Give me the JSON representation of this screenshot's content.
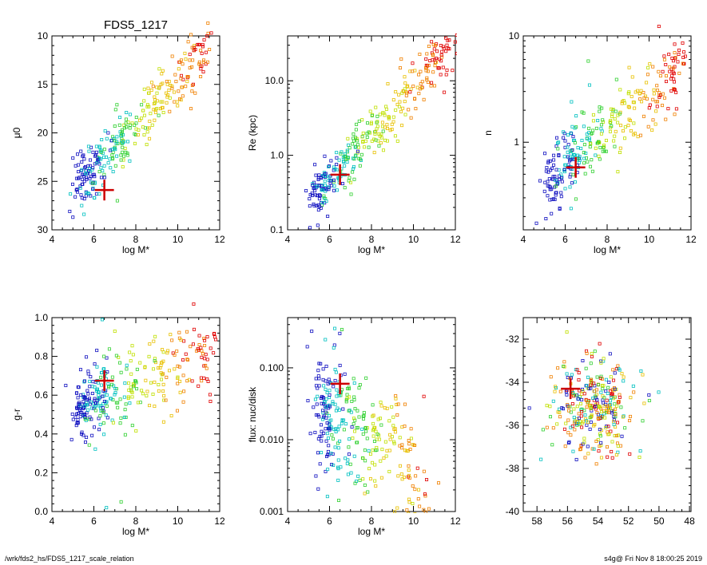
{
  "footer": {
    "path": "/wrk/fds2_hs/FDS5_1217_scale_relation",
    "stamp": "s4g@  Fri Nov  8 18:00:25 2019"
  },
  "colors": {
    "marker": "#cc0000",
    "palette": [
      "#1010c0",
      "#00c0c0",
      "#30d030",
      "#c0e000",
      "#e8c000",
      "#f08000",
      "#e00000"
    ]
  },
  "chart_data": [
    {
      "type": "scatter",
      "title": "FDS5_1217",
      "xlabel": "log M*",
      "ylabel": "μ0",
      "xlim": [
        4,
        12
      ],
      "ylim": [
        30,
        10
      ],
      "yscale": "linear",
      "xticks": [
        4,
        6,
        8,
        10,
        12
      ],
      "yticks": [
        10,
        15,
        20,
        25,
        30
      ],
      "ytick_labels": [
        "10",
        "15",
        "20",
        "25",
        "30"
      ],
      "marker": {
        "x": 6.5,
        "y": 25.9
      },
      "trend": {
        "x0": 5.3,
        "y0": 25.5,
        "x1": 11.5,
        "y1": 11.0,
        "scatter": 1.5
      },
      "outliers": [
        [
          9.2,
          16.8
        ],
        [
          11.6,
          9.7
        ],
        [
          7.1,
          17.1
        ]
      ],
      "points": []
    },
    {
      "type": "scatter",
      "title": "",
      "xlabel": "log M*",
      "ylabel": "Re (kpc)",
      "xlim": [
        4,
        12
      ],
      "ylim": [
        0.1,
        40
      ],
      "yscale": "log",
      "xticks": [
        4,
        6,
        8,
        10,
        12
      ],
      "yticks": [
        0.1,
        1.0,
        10.0
      ],
      "ytick_labels": [
        "0.1",
        "1.0",
        "10.0"
      ],
      "marker": {
        "x": 6.5,
        "y": 0.55
      },
      "trend": {
        "x0": 5.3,
        "y0": -0.55,
        "x1": 11.7,
        "y1": 1.45,
        "scatter": 0.18
      },
      "outliers": [
        [
          11.6,
          30.0
        ],
        [
          9.3,
          6.5
        ]
      ],
      "points": []
    },
    {
      "type": "scatter",
      "title": "",
      "xlabel": "log M*",
      "ylabel": "n",
      "xlim": [
        4,
        12
      ],
      "ylim": [
        0.15,
        10
      ],
      "yscale": "log",
      "xticks": [
        4,
        6,
        8,
        10,
        12
      ],
      "yticks": [
        1,
        10
      ],
      "ytick_labels": [
        "1",
        "10"
      ],
      "marker": {
        "x": 6.5,
        "y": 0.58
      },
      "trend": {
        "x0": 5.3,
        "y0": -0.35,
        "x1": 11.7,
        "y1": 0.75,
        "scatter": 0.17
      },
      "outliers": [
        [
          7.1,
          5.8
        ],
        [
          6.3,
          2.4
        ]
      ],
      "points": []
    },
    {
      "type": "scatter",
      "title": "",
      "xlabel": "log M*",
      "ylabel": "g-r",
      "xlim": [
        4,
        12
      ],
      "ylim": [
        0.0,
        1.0
      ],
      "yscale": "linear",
      "xticks": [
        4,
        6,
        8,
        10,
        12
      ],
      "yticks": [
        0.0,
        0.2,
        0.4,
        0.6,
        0.8,
        1.0
      ],
      "ytick_labels": [
        "0.0",
        "0.2",
        "0.4",
        "0.6",
        "0.8",
        "1.0"
      ],
      "marker": {
        "x": 6.5,
        "y": 0.675
      },
      "trend": {
        "x0": 5.3,
        "y0": 0.52,
        "x1": 11.7,
        "y1": 0.82,
        "scatter": 0.1
      },
      "outliers": [
        [
          6.4,
          0.99
        ],
        [
          7.3,
          0.05
        ],
        [
          6.6,
          0.02
        ],
        [
          7.0,
          0.93
        ]
      ],
      "points": []
    },
    {
      "type": "scatter",
      "title": "",
      "xlabel": "log M*",
      "ylabel": "flux: nuc/disk",
      "xlim": [
        4,
        12
      ],
      "ylim": [
        0.001,
        0.5
      ],
      "yscale": "log",
      "xticks": [
        4,
        6,
        8,
        10,
        12
      ],
      "yticks": [
        0.001,
        0.01,
        0.1
      ],
      "ytick_labels": [
        "0.001",
        "0.010",
        "0.100"
      ],
      "marker": {
        "x": 6.5,
        "y": 0.06
      },
      "trend": {
        "x0": 5.5,
        "y0": -1.5,
        "x1": 10.5,
        "y1": -2.4,
        "scatter": 0.45
      },
      "outliers": [
        [
          6.2,
          0.19
        ],
        [
          11.2,
          0.0025
        ],
        [
          10.5,
          0.04
        ]
      ],
      "points": []
    },
    {
      "type": "scatter",
      "title": "",
      "xlabel": "",
      "ylabel": "",
      "xlim": [
        58.9,
        47.9
      ],
      "ylim": [
        -40,
        -31
      ],
      "yscale": "linear",
      "xticks": [
        58,
        56,
        54,
        52,
        50,
        48
      ],
      "yticks": [
        -40,
        -38,
        -36,
        -34,
        -32
      ],
      "ytick_labels": [
        "-40",
        "-38",
        "-36",
        "-34",
        "-32"
      ],
      "marker": {
        "x": 55.8,
        "y": -34.3
      },
      "cloud": {
        "xc": 54.3,
        "yc": -35.3,
        "xsd": 1.8,
        "ysd": 1.1
      },
      "outliers": [
        [
          55.0,
          -33.0
        ],
        [
          53.8,
          -33.1
        ],
        [
          58.5,
          -35.2
        ]
      ],
      "points": []
    }
  ]
}
